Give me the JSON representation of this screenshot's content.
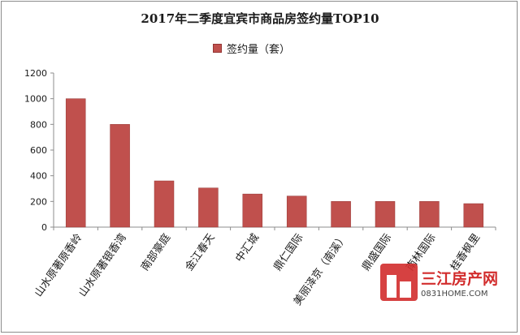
{
  "chart_data": {
    "type": "bar",
    "title": "2017年二季度宜宾市商品房签约量TOP10",
    "legend": {
      "label": "签约量（套）",
      "position": "top"
    },
    "categories": [
      "山水原著原香岭",
      "山水原著银香湾",
      "南部豪庭",
      "金江春天",
      "中汇城",
      "鼎仁国际",
      "美丽泽京（南溪）",
      "鼎盛国际",
      "南林国际",
      "桂香枫里"
    ],
    "series": [
      {
        "name": "签约量（套）",
        "values": [
          1000,
          800,
          360,
          305,
          258,
          242,
          200,
          200,
          200,
          183
        ]
      }
    ],
    "ylim": [
      0,
      1200
    ],
    "yticks": [
      0,
      200,
      400,
      600,
      800,
      1000,
      1200
    ],
    "grid": false,
    "bar_color": "#c0504d"
  },
  "watermark": {
    "name": "三江房产网",
    "url": "0831HOME.COM"
  }
}
